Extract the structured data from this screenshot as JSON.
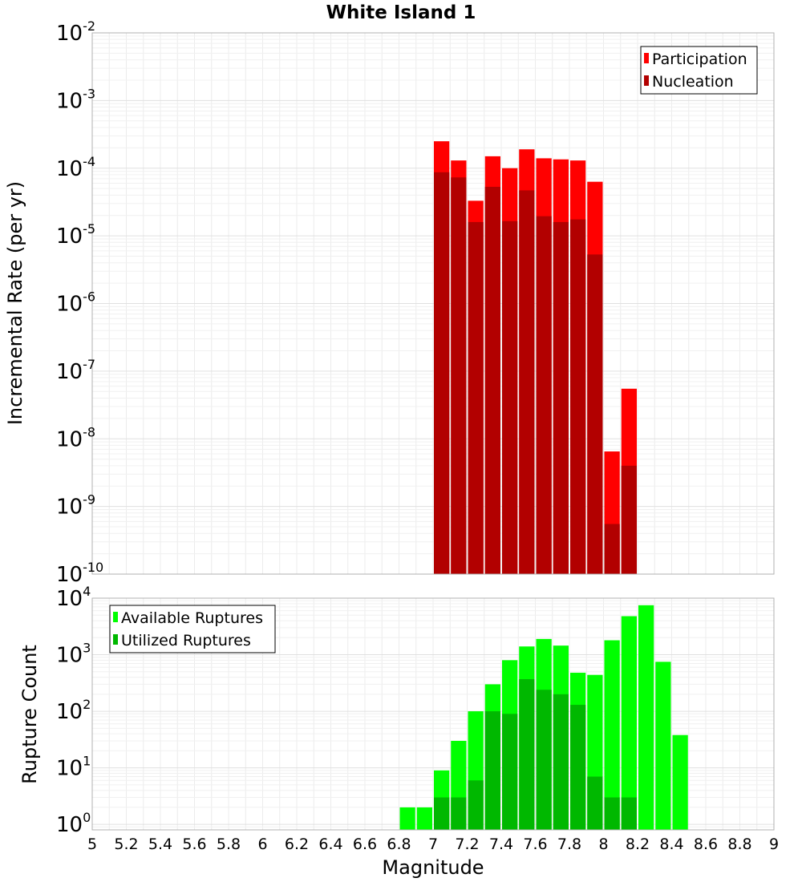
{
  "chart_data": [
    {
      "type": "bar",
      "title": "White Island 1",
      "xlabel": "",
      "ylabel": "Incremental Rate (per yr)",
      "yscale": "log",
      "ylim": [
        1e-10,
        0.01
      ],
      "xlim": [
        5,
        9
      ],
      "grid": true,
      "legend_position": "top-right",
      "bin_width": 0.1,
      "y_tick_labels": [
        {
          "base": "10",
          "exp": "-2",
          "value": 0.01
        },
        {
          "base": "10",
          "exp": "-3",
          "value": 0.001
        },
        {
          "base": "10",
          "exp": "-4",
          "value": 0.0001
        },
        {
          "base": "10",
          "exp": "-5",
          "value": 1e-05
        },
        {
          "base": "10",
          "exp": "-6",
          "value": 1e-06
        },
        {
          "base": "10",
          "exp": "-7",
          "value": 1e-07
        },
        {
          "base": "10",
          "exp": "-8",
          "value": 1e-08
        },
        {
          "base": "10",
          "exp": "-9",
          "value": 1e-09
        },
        {
          "base": "10",
          "exp": "-10",
          "value": 1e-10
        }
      ],
      "series": [
        {
          "name": "Participation",
          "color": "#ff0000",
          "x": [
            7.05,
            7.15,
            7.25,
            7.35,
            7.45,
            7.55,
            7.65,
            7.75,
            7.85,
            7.95,
            8.05,
            8.15
          ],
          "values": [
            0.00025,
            0.00013,
            3.3e-05,
            0.00015,
            0.0001,
            0.00019,
            0.00014,
            0.000135,
            0.00013,
            6.3e-05,
            6.5e-09,
            5.5e-08
          ]
        },
        {
          "name": "Nucleation",
          "color": "#b20000",
          "x": [
            7.05,
            7.15,
            7.25,
            7.35,
            7.45,
            7.55,
            7.65,
            7.75,
            7.85,
            7.95,
            8.05,
            8.15
          ],
          "values": [
            8.7e-05,
            7.3e-05,
            1.6e-05,
            5.3e-05,
            1.65e-05,
            4.7e-05,
            1.95e-05,
            1.6e-05,
            1.75e-05,
            5.3e-06,
            5.5e-10,
            4e-09
          ]
        }
      ]
    },
    {
      "type": "bar",
      "title": "",
      "xlabel": "Magnitude",
      "ylabel": "Rupture Count",
      "yscale": "log",
      "ylim": [
        0.8,
        10000
      ],
      "xlim": [
        5,
        9
      ],
      "grid": true,
      "legend_position": "top-left",
      "bin_width": 0.1,
      "y_tick_labels": [
        {
          "base": "10",
          "exp": "4",
          "value": 10000
        },
        {
          "base": "10",
          "exp": "3",
          "value": 1000
        },
        {
          "base": "10",
          "exp": "2",
          "value": 100
        },
        {
          "base": "10",
          "exp": "1",
          "value": 10
        },
        {
          "base": "10",
          "exp": "0",
          "value": 1
        }
      ],
      "x_tick_labels": [
        "5",
        "5.2",
        "5.4",
        "5.6",
        "5.8",
        "6",
        "6.2",
        "6.4",
        "6.6",
        "6.8",
        "7",
        "7.2",
        "7.4",
        "7.6",
        "7.8",
        "8",
        "8.2",
        "8.4",
        "8.6",
        "8.8",
        "9"
      ],
      "series": [
        {
          "name": "Available Ruptures",
          "color": "#00ff00",
          "x": [
            6.85,
            6.95,
            7.05,
            7.15,
            7.25,
            7.35,
            7.45,
            7.55,
            7.65,
            7.75,
            7.85,
            7.95,
            8.05,
            8.15,
            8.25,
            8.35,
            8.45
          ],
          "values": [
            2,
            2,
            9,
            30,
            100,
            300,
            800,
            1400,
            1900,
            1450,
            480,
            440,
            1800,
            4800,
            7500,
            750,
            38
          ]
        },
        {
          "name": "Utilized Ruptures",
          "color": "#00b800",
          "x": [
            6.85,
            6.95,
            7.05,
            7.15,
            7.25,
            7.35,
            7.45,
            7.55,
            7.65,
            7.75,
            7.85,
            7.95,
            8.05,
            8.15,
            8.25,
            8.35,
            8.45
          ],
          "values": [
            0,
            0,
            3,
            3,
            6,
            100,
            90,
            370,
            240,
            200,
            130,
            7,
            3,
            3,
            0,
            0,
            0
          ]
        }
      ]
    }
  ]
}
